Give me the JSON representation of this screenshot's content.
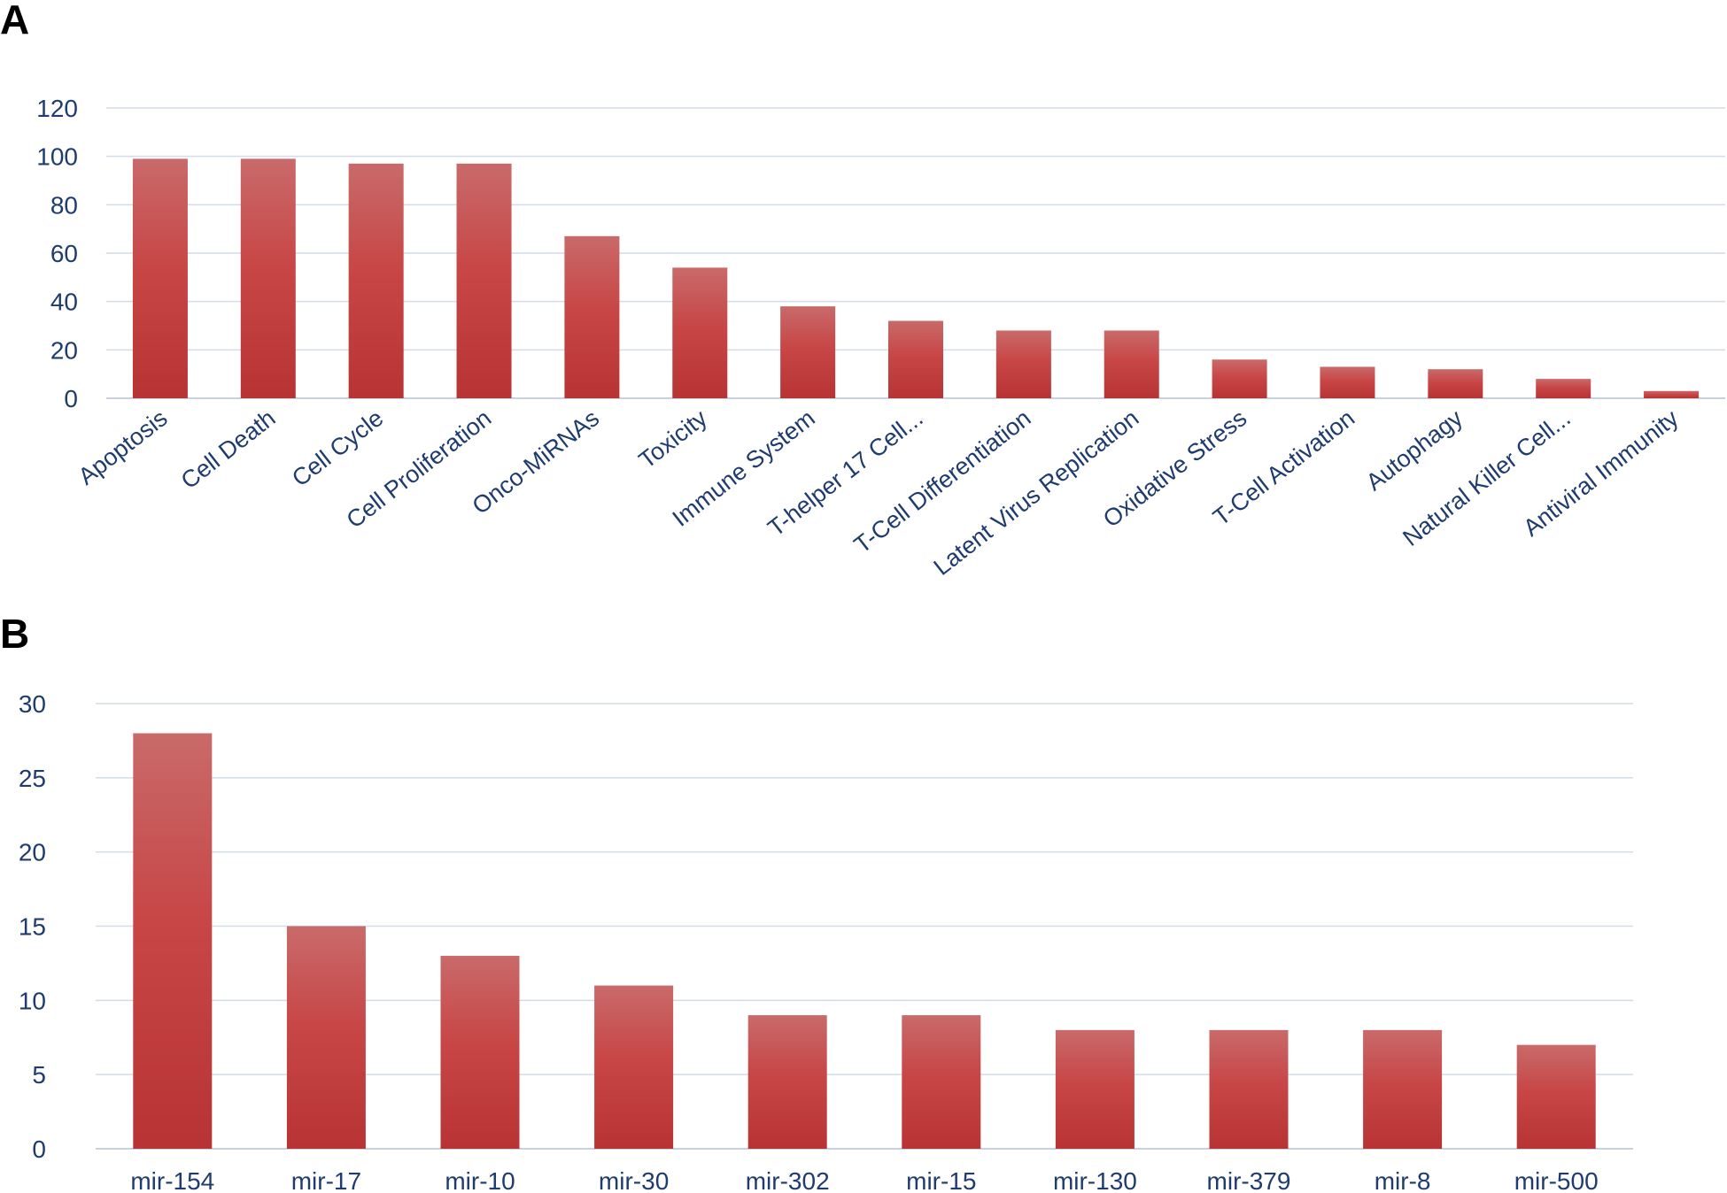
{
  "panels": [
    {
      "letter": "A"
    },
    {
      "letter": "B"
    }
  ],
  "colors": {
    "bar_top": "#c96a6a",
    "bar_mid": "#c84646",
    "bar_bottom": "#b83434",
    "text": "#1f3c6e",
    "grid": "#d3dcea"
  },
  "chart_data": [
    {
      "panel": "A",
      "type": "bar",
      "categories": [
        "Apoptosis",
        "Cell Death",
        "Cell Cycle",
        "Cell Proliferation",
        "Onco-MiRNAs",
        "Toxicity",
        "Immune System",
        "T-helper 17 Cell...",
        "T-Cell Differentiation",
        "Latent Virus Replication",
        "Oxidative Stress",
        "T-Cell Activation",
        "Autophagy",
        "Natural Killer Cell...",
        "Antiviral Immunity"
      ],
      "values": [
        99,
        99,
        97,
        97,
        67,
        54,
        38,
        32,
        28,
        28,
        16,
        13,
        12,
        8,
        3
      ],
      "yticks": [
        0,
        20,
        40,
        60,
        80,
        100,
        120
      ],
      "ylim": [
        0,
        120
      ],
      "grid": true
    },
    {
      "panel": "B",
      "type": "bar",
      "categories": [
        "mir-154",
        "mir-17",
        "mir-10",
        "mir-30",
        "mir-302",
        "mir-15",
        "mir-130",
        "mir-379",
        "mir-8",
        "mir-500"
      ],
      "values": [
        28,
        15,
        13,
        11,
        9,
        9,
        8,
        8,
        8,
        7
      ],
      "yticks": [
        0,
        5,
        10,
        15,
        20,
        25,
        30
      ],
      "ylim": [
        0,
        30
      ],
      "grid": true
    }
  ]
}
